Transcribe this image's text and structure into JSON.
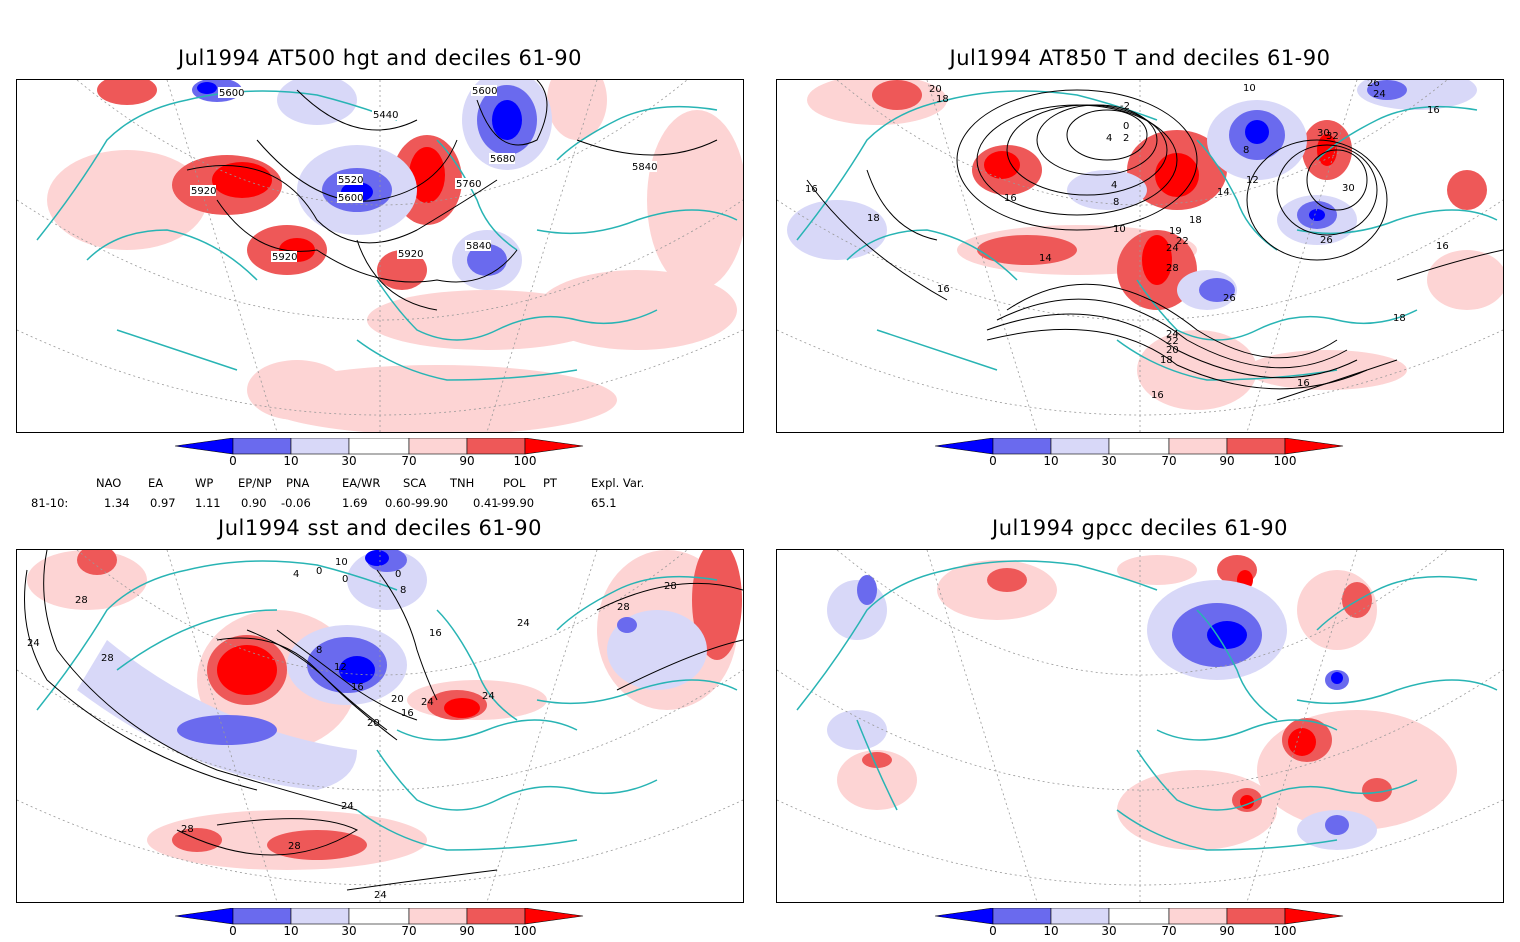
{
  "panels": [
    {
      "id": "hgt",
      "title": "Jul1994 AT500 hgt and deciles 61-90",
      "contour_labels": [
        "5600",
        "5440",
        "5600",
        "5680",
        "5840",
        "5920",
        "5520",
        "5600",
        "5760",
        "5920",
        "5920",
        "5840"
      ]
    },
    {
      "id": "t850",
      "title": "Jul1994 AT850 T and deciles 61-90",
      "contour_labels": [
        "20",
        "18",
        "-2",
        "10",
        "26",
        "24",
        "4",
        "0",
        "2",
        "8",
        "12",
        "30",
        "32",
        "16",
        "16",
        "4",
        "8",
        "10",
        "14",
        "18",
        "30",
        "16",
        "18",
        "14",
        "19",
        "24",
        "22",
        "28",
        "26",
        "16",
        "16",
        "26",
        "24",
        "22",
        "20",
        "18",
        "18",
        "16",
        "16"
      ]
    },
    {
      "id": "sst",
      "title": "Jul1994 sst and deciles 61-90",
      "contour_labels": [
        "28",
        "24",
        "28",
        "4",
        "0",
        "10",
        "0",
        "8",
        "0",
        "28",
        "24",
        "28",
        "8",
        "12",
        "16",
        "16",
        "20",
        "24",
        "24",
        "20",
        "16",
        "24",
        "28",
        "28",
        "24"
      ]
    },
    {
      "id": "gpcc",
      "title": "Jul1994 gpcc deciles 61-90",
      "contour_labels": []
    }
  ],
  "colorbar": {
    "ticks": [
      "0",
      "10",
      "30",
      "70",
      "90",
      "100"
    ],
    "colors": [
      "#0000ff",
      "#6a6aee",
      "#d8d8f8",
      "#ffffff",
      "#fdd4d4",
      "#ee5858",
      "#ff0000"
    ]
  },
  "indices": {
    "headers": [
      "NAO",
      "EA",
      "WP",
      "EP/NP",
      "PNA",
      "EA/WR",
      "SCA",
      "TNH",
      "POL",
      "PT",
      "Expl. Var."
    ],
    "row_label": "81-10:",
    "values": [
      "1.34",
      "0.97",
      "1.11",
      "0.90",
      "-0.06",
      "1.69",
      "0.60",
      "-99.90",
      "0.41",
      "-99.90",
      "65.1"
    ]
  }
}
